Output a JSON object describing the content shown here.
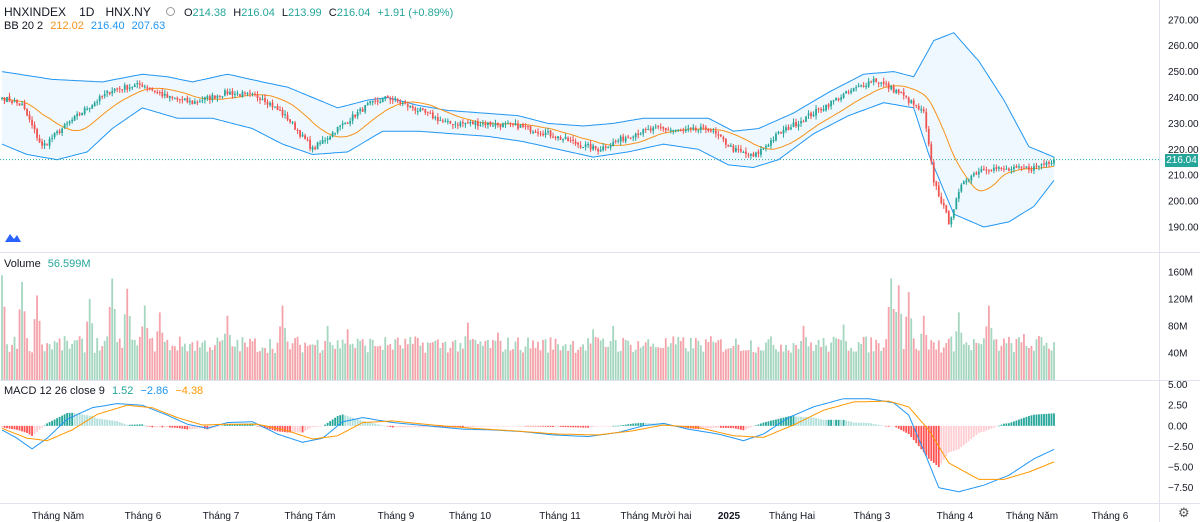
{
  "header": {
    "symbol": "HNXINDEX",
    "interval": "1D",
    "exchange": "HNX.NY",
    "open_label": "O",
    "open": "214.38",
    "high_label": "H",
    "high": "216.04",
    "low_label": "L",
    "low": "213.99",
    "close_label": "C",
    "close": "216.04",
    "change": "+1.91 (+0.89%)"
  },
  "bb_legend": {
    "name": "BB 20 2",
    "basis": "212.02",
    "upper": "216.40",
    "lower": "207.63"
  },
  "volume_legend": {
    "name": "Volume",
    "value": "56.599M"
  },
  "macd_legend": {
    "name": "MACD 12 26 close 9",
    "hist": "1.52",
    "macd": "−2.86",
    "signal": "−4.38"
  },
  "last_price_tag": "216.04",
  "colors": {
    "up": "#26a69a",
    "down": "#ef5350",
    "bb_basis": "#f7931a",
    "bb_band": "#2196f3",
    "bb_fill": "rgba(33,150,243,0.07)",
    "vol_up": "#a5d6c0",
    "vol_down": "#f4a3aa",
    "macd_line": "#2196f3",
    "signal_line": "#ff9800"
  },
  "chart_data": [
    {
      "type": "candlestick",
      "name": "price",
      "y_ticks": [
        "270.00",
        "260.00",
        "250.00",
        "240.00",
        "230.00",
        "220.00",
        "210.00",
        "200.00",
        "190.00"
      ],
      "ylim": [
        185,
        273
      ],
      "x_labels": [
        "Tháng Năm",
        "Tháng 6",
        "Tháng 7",
        "Tháng Tám",
        "Tháng 9",
        "Tháng 10",
        "Tháng 11",
        "Tháng Mười hai",
        "2025",
        "Tháng Hai",
        "Tháng 3",
        "Tháng 4",
        "Tháng Năm",
        "Tháng 6"
      ],
      "last_close": 216.04,
      "close_anchors": [
        [
          0,
          240
        ],
        [
          8,
          237
        ],
        [
          16,
          221
        ],
        [
          24,
          228
        ],
        [
          34,
          236
        ],
        [
          44,
          243
        ],
        [
          56,
          245
        ],
        [
          66,
          240
        ],
        [
          76,
          238
        ],
        [
          90,
          242
        ],
        [
          104,
          240
        ],
        [
          114,
          232
        ],
        [
          124,
          220
        ],
        [
          134,
          228
        ],
        [
          146,
          237
        ],
        [
          154,
          240
        ],
        [
          164,
          236
        ],
        [
          178,
          230
        ],
        [
          192,
          230
        ],
        [
          206,
          229
        ],
        [
          218,
          226
        ],
        [
          230,
          222
        ],
        [
          238,
          220
        ],
        [
          252,
          226
        ],
        [
          262,
          228
        ],
        [
          272,
          227
        ],
        [
          282,
          228
        ],
        [
          292,
          220
        ],
        [
          300,
          217
        ],
        [
          310,
          226
        ],
        [
          324,
          234
        ],
        [
          336,
          241
        ],
        [
          348,
          247
        ],
        [
          358,
          242
        ],
        [
          368,
          234
        ],
        [
          372,
          208
        ],
        [
          378,
          192
        ],
        [
          384,
          208
        ],
        [
          392,
          213
        ],
        [
          402,
          212
        ],
        [
          412,
          213
        ],
        [
          420,
          216.04
        ]
      ],
      "upper_anchors": [
        [
          0,
          250
        ],
        [
          20,
          247
        ],
        [
          40,
          246
        ],
        [
          56,
          249
        ],
        [
          66,
          248
        ],
        [
          76,
          246
        ],
        [
          90,
          249
        ],
        [
          104,
          246
        ],
        [
          114,
          244
        ],
        [
          124,
          240
        ],
        [
          134,
          236
        ],
        [
          146,
          239
        ],
        [
          154,
          240
        ],
        [
          166,
          237
        ],
        [
          178,
          235
        ],
        [
          192,
          234
        ],
        [
          206,
          233
        ],
        [
          218,
          230
        ],
        [
          232,
          229
        ],
        [
          244,
          230
        ],
        [
          256,
          232
        ],
        [
          268,
          232
        ],
        [
          282,
          232
        ],
        [
          292,
          227
        ],
        [
          302,
          228
        ],
        [
          316,
          234
        ],
        [
          330,
          242
        ],
        [
          344,
          249
        ],
        [
          356,
          250
        ],
        [
          364,
          248
        ],
        [
          372,
          262
        ],
        [
          380,
          265
        ],
        [
          390,
          254
        ],
        [
          400,
          239
        ],
        [
          410,
          221
        ],
        [
          420,
          217
        ]
      ],
      "lower_anchors": [
        [
          0,
          222
        ],
        [
          10,
          218
        ],
        [
          22,
          216
        ],
        [
          34,
          219
        ],
        [
          44,
          228
        ],
        [
          56,
          236
        ],
        [
          70,
          232
        ],
        [
          84,
          232
        ],
        [
          100,
          228
        ],
        [
          112,
          222
        ],
        [
          124,
          218
        ],
        [
          138,
          219
        ],
        [
          152,
          227
        ],
        [
          166,
          227
        ],
        [
          180,
          226
        ],
        [
          194,
          225
        ],
        [
          208,
          223
        ],
        [
          222,
          220
        ],
        [
          236,
          217
        ],
        [
          250,
          219
        ],
        [
          264,
          222
        ],
        [
          278,
          220
        ],
        [
          290,
          214
        ],
        [
          300,
          213
        ],
        [
          310,
          216
        ],
        [
          324,
          226
        ],
        [
          338,
          233
        ],
        [
          352,
          238
        ],
        [
          364,
          236
        ],
        [
          370,
          218
        ],
        [
          380,
          195
        ],
        [
          392,
          190
        ],
        [
          402,
          192
        ],
        [
          412,
          198
        ],
        [
          420,
          208
        ]
      ]
    },
    {
      "type": "bar",
      "name": "volume",
      "y_ticks": [
        "160M",
        "120M",
        "80M",
        "40M"
      ],
      "ylim": [
        0,
        170
      ],
      "spikes": [
        [
          0,
          155
        ],
        [
          8,
          145
        ],
        [
          14,
          125
        ],
        [
          35,
          120
        ],
        [
          44,
          150
        ],
        [
          50,
          135
        ],
        [
          57,
          110
        ],
        [
          63,
          100
        ],
        [
          90,
          95
        ],
        [
          112,
          110
        ],
        [
          130,
          80
        ],
        [
          138,
          75
        ],
        [
          186,
          85
        ],
        [
          198,
          70
        ],
        [
          236,
          75
        ],
        [
          244,
          80
        ],
        [
          320,
          80
        ],
        [
          336,
          82
        ],
        [
          355,
          150
        ],
        [
          358,
          140
        ],
        [
          362,
          130
        ],
        [
          368,
          95
        ],
        [
          382,
          100
        ],
        [
          394,
          110
        ],
        [
          408,
          68
        ],
        [
          414,
          65
        ]
      ]
    },
    {
      "type": "line",
      "name": "macd",
      "y_ticks": [
        "5.00",
        "2.50",
        "0.00",
        "−2.50",
        "−5.00",
        "−7.50"
      ],
      "ylim": [
        -9,
        5.2
      ],
      "macd_anchors": [
        [
          0,
          -0.5
        ],
        [
          6,
          -1.5
        ],
        [
          12,
          -2.8
        ],
        [
          18,
          -1.5
        ],
        [
          26,
          0.8
        ],
        [
          36,
          2.2
        ],
        [
          46,
          2.7
        ],
        [
          56,
          2.5
        ],
        [
          66,
          1.3
        ],
        [
          74,
          0.2
        ],
        [
          82,
          -0.3
        ],
        [
          90,
          0.4
        ],
        [
          100,
          0.5
        ],
        [
          110,
          -1.0
        ],
        [
          120,
          -2.0
        ],
        [
          128,
          -1.5
        ],
        [
          136,
          0.5
        ],
        [
          144,
          1.0
        ],
        [
          156,
          0.4
        ],
        [
          170,
          0.0
        ],
        [
          184,
          -0.4
        ],
        [
          196,
          -0.5
        ],
        [
          208,
          -0.7
        ],
        [
          220,
          -1.1
        ],
        [
          234,
          -1.3
        ],
        [
          246,
          -0.8
        ],
        [
          256,
          0.0
        ],
        [
          264,
          0.3
        ],
        [
          274,
          -0.4
        ],
        [
          286,
          -1.0
        ],
        [
          296,
          -1.8
        ],
        [
          304,
          -1.0
        ],
        [
          314,
          1.0
        ],
        [
          324,
          2.3
        ],
        [
          336,
          3.3
        ],
        [
          346,
          3.3
        ],
        [
          356,
          2.8
        ],
        [
          362,
          1.3
        ],
        [
          368,
          -3.0
        ],
        [
          374,
          -7.5
        ],
        [
          382,
          -8.0
        ],
        [
          392,
          -7.2
        ],
        [
          402,
          -6.0
        ],
        [
          412,
          -4.0
        ],
        [
          420,
          -2.86
        ]
      ],
      "signal_anchors": [
        [
          0,
          -0.3
        ],
        [
          10,
          -1.5
        ],
        [
          18,
          -1.8
        ],
        [
          28,
          -0.5
        ],
        [
          38,
          1.4
        ],
        [
          50,
          2.5
        ],
        [
          60,
          2.2
        ],
        [
          70,
          1.0
        ],
        [
          80,
          0.1
        ],
        [
          90,
          0.2
        ],
        [
          102,
          0.2
        ],
        [
          114,
          -0.6
        ],
        [
          124,
          -1.6
        ],
        [
          134,
          -1.2
        ],
        [
          144,
          0.4
        ],
        [
          156,
          0.6
        ],
        [
          172,
          0.1
        ],
        [
          188,
          -0.3
        ],
        [
          204,
          -0.6
        ],
        [
          222,
          -1.0
        ],
        [
          238,
          -1.1
        ],
        [
          252,
          -0.6
        ],
        [
          264,
          0.1
        ],
        [
          278,
          -0.2
        ],
        [
          292,
          -1.2
        ],
        [
          304,
          -1.4
        ],
        [
          316,
          0.1
        ],
        [
          328,
          1.9
        ],
        [
          340,
          2.9
        ],
        [
          354,
          3.0
        ],
        [
          362,
          2.3
        ],
        [
          370,
          -0.5
        ],
        [
          378,
          -4.5
        ],
        [
          390,
          -6.5
        ],
        [
          400,
          -6.5
        ],
        [
          410,
          -5.6
        ],
        [
          420,
          -4.38
        ]
      ]
    }
  ]
}
